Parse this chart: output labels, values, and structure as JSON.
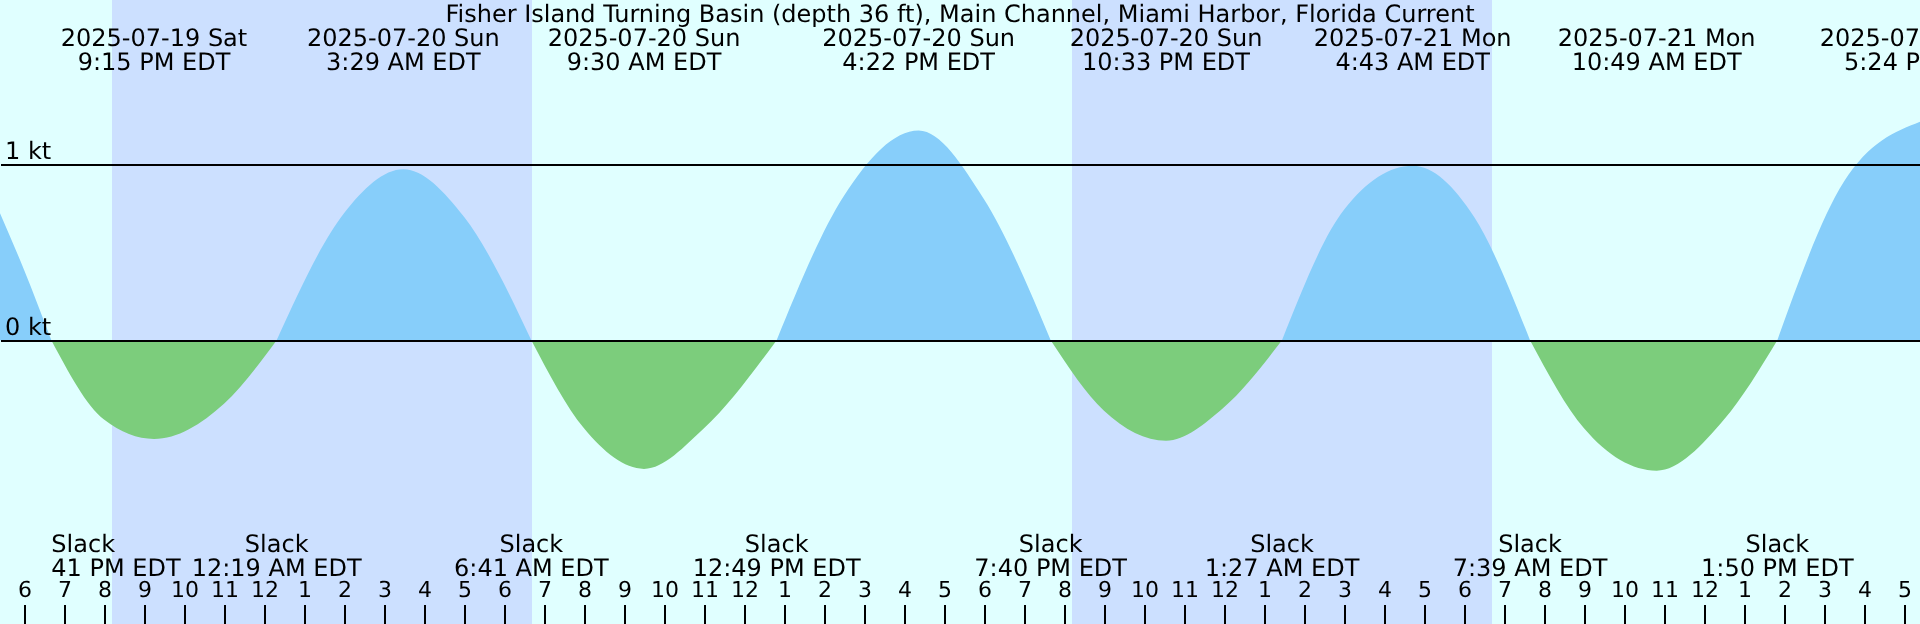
{
  "chart_data": {
    "type": "area",
    "title": "Fisher Island Turning Basin (depth 36 ft), Main Channel, Miami Harbor, Florida Current",
    "x": [
      "2025-07-19T17:24",
      "2025-07-19T18:00",
      "2025-07-19T18:41",
      "2025-07-19T20:00",
      "2025-07-19T21:15",
      "2025-07-19T23:00",
      "2025-07-20T00:19",
      "2025-07-20T02:00",
      "2025-07-20T03:29",
      "2025-07-20T05:00",
      "2025-07-20T06:41",
      "2025-07-20T08:00",
      "2025-07-20T09:30",
      "2025-07-20T11:00",
      "2025-07-20T12:49",
      "2025-07-20T14:30",
      "2025-07-20T16:22",
      "2025-07-20T18:00",
      "2025-07-20T19:40",
      "2025-07-20T21:00",
      "2025-07-20T22:33",
      "2025-07-21T00:00",
      "2025-07-21T01:27",
      "2025-07-21T03:00",
      "2025-07-21T04:43",
      "2025-07-21T06:15",
      "2025-07-21T07:39",
      "2025-07-21T09:00",
      "2025-07-21T10:49",
      "2025-07-21T12:30",
      "2025-07-21T13:50",
      "2025-07-21T15:30",
      "2025-07-21T17:24"
    ],
    "series": [
      {
        "color": "#87cefa",
        "values": [
          0.72,
          0.4,
          0,
          null,
          null,
          null,
          0,
          0.72,
          0.97,
          0.7,
          0,
          null,
          null,
          null,
          0,
          0.82,
          1.19,
          0.8,
          0,
          null,
          null,
          null,
          0,
          0.74,
          0.99,
          0.7,
          0,
          null,
          null,
          null,
          0,
          0.9,
          1.24
        ]
      },
      {
        "color": "#7ccd7c",
        "values": [
          null,
          null,
          0,
          -0.45,
          -0.56,
          -0.36,
          0,
          null,
          null,
          null,
          0,
          -0.5,
          -0.73,
          -0.5,
          0,
          null,
          null,
          null,
          0,
          -0.4,
          -0.57,
          -0.38,
          0,
          null,
          null,
          null,
          0,
          -0.5,
          -0.74,
          -0.45,
          0,
          null,
          null
        ]
      }
    ],
    "xlim": [
      "2025-07-19T17:24",
      "2025-07-21T17:24"
    ],
    "ylim": [
      -1.61,
      1.93
    ],
    "yticks": [
      {
        "value": 0,
        "label": "0 kt"
      },
      {
        "value": 1,
        "label": "1 kt"
      }
    ],
    "xticks": [
      {
        "value": "2025-07-19T18:00",
        "label": "6"
      },
      {
        "value": "2025-07-19T19:00",
        "label": "7"
      },
      {
        "value": "2025-07-19T20:00",
        "label": "8"
      },
      {
        "value": "2025-07-19T21:00",
        "label": "9"
      },
      {
        "value": "2025-07-19T22:00",
        "label": "10"
      },
      {
        "value": "2025-07-19T23:00",
        "label": "11"
      },
      {
        "value": "2025-07-20T00:00",
        "label": "12"
      },
      {
        "value": "2025-07-20T01:00",
        "label": "1"
      },
      {
        "value": "2025-07-20T02:00",
        "label": "2"
      },
      {
        "value": "2025-07-20T03:00",
        "label": "3"
      },
      {
        "value": "2025-07-20T04:00",
        "label": "4"
      },
      {
        "value": "2025-07-20T05:00",
        "label": "5"
      },
      {
        "value": "2025-07-20T06:00",
        "label": "6"
      },
      {
        "value": "2025-07-20T07:00",
        "label": "7"
      },
      {
        "value": "2025-07-20T08:00",
        "label": "8"
      },
      {
        "value": "2025-07-20T09:00",
        "label": "9"
      },
      {
        "value": "2025-07-20T10:00",
        "label": "10"
      },
      {
        "value": "2025-07-20T11:00",
        "label": "11"
      },
      {
        "value": "2025-07-20T12:00",
        "label": "12"
      },
      {
        "value": "2025-07-20T13:00",
        "label": "1"
      },
      {
        "value": "2025-07-20T14:00",
        "label": "2"
      },
      {
        "value": "2025-07-20T15:00",
        "label": "3"
      },
      {
        "value": "2025-07-20T16:00",
        "label": "4"
      },
      {
        "value": "2025-07-20T17:00",
        "label": "5"
      },
      {
        "value": "2025-07-20T18:00",
        "label": "6"
      },
      {
        "value": "2025-07-20T19:00",
        "label": "7"
      },
      {
        "value": "2025-07-20T20:00",
        "label": "8"
      },
      {
        "value": "2025-07-20T21:00",
        "label": "9"
      },
      {
        "value": "2025-07-20T22:00",
        "label": "10"
      },
      {
        "value": "2025-07-20T23:00",
        "label": "11"
      },
      {
        "value": "2025-07-21T00:00",
        "label": "12"
      },
      {
        "value": "2025-07-21T01:00",
        "label": "1"
      },
      {
        "value": "2025-07-21T02:00",
        "label": "2"
      },
      {
        "value": "2025-07-21T03:00",
        "label": "3"
      },
      {
        "value": "2025-07-21T04:00",
        "label": "4"
      },
      {
        "value": "2025-07-21T05:00",
        "label": "5"
      },
      {
        "value": "2025-07-21T06:00",
        "label": "6"
      },
      {
        "value": "2025-07-21T07:00",
        "label": "7"
      },
      {
        "value": "2025-07-21T08:00",
        "label": "8"
      },
      {
        "value": "2025-07-21T09:00",
        "label": "9"
      },
      {
        "value": "2025-07-21T10:00",
        "label": "10"
      },
      {
        "value": "2025-07-21T11:00",
        "label": "11"
      },
      {
        "value": "2025-07-21T12:00",
        "label": "12"
      },
      {
        "value": "2025-07-21T13:00",
        "label": "1"
      },
      {
        "value": "2025-07-21T14:00",
        "label": "2"
      },
      {
        "value": "2025-07-21T15:00",
        "label": "3"
      },
      {
        "value": "2025-07-21T16:00",
        "label": "4"
      },
      {
        "value": "2025-07-21T17:00",
        "label": "5"
      }
    ],
    "grid": "y",
    "bands": [
      {
        "axis": "x",
        "from": "2025-07-19T20:12",
        "to": "2025-07-20T06:42",
        "color": "#cce0ff"
      },
      {
        "axis": "x",
        "from": "2025-07-20T20:12",
        "to": "2025-07-21T06:42",
        "color": "#cce0ff"
      }
    ],
    "annotations": [
      "Slack\n41 PM EDT",
      "2025-07-19 Sat\n9:15 PM EDT",
      "Slack\n12:19 AM EDT",
      "2025-07-20 Sun\n3:29 AM EDT",
      "Slack\n6:41 AM EDT",
      "2025-07-20 Sun\n9:30 AM EDT",
      "Slack\n12:49 PM EDT",
      "2025-07-20 Sun\n4:22 PM EDT",
      "Slack\n7:40 PM EDT",
      "2025-07-20 Sun\n10:33 PM EDT",
      "Slack\n1:27 AM EDT",
      "2025-07-21 Mon\n4:43 AM EDT",
      "Slack\n7:39 AM EDT",
      "2025-07-21 Mon\n10:49 AM EDT",
      "Slack\n1:50 PM EDT",
      "2025-07\n5:24 P"
    ]
  }
}
